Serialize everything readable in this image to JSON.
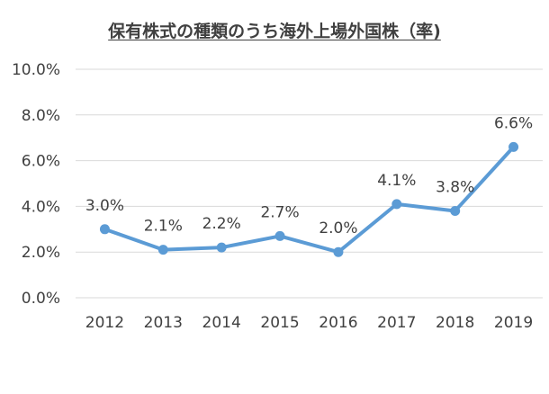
{
  "chart_data": {
    "type": "line",
    "title": "保有株式の種類のうち海外上場外国株（率)",
    "xlabel": "",
    "ylabel": "",
    "categories": [
      "2012",
      "2013",
      "2014",
      "2015",
      "2016",
      "2017",
      "2018",
      "2019"
    ],
    "series": [
      {
        "values": [
          3.0,
          2.1,
          2.2,
          2.7,
          2.0,
          4.1,
          3.8,
          6.6
        ],
        "data_labels": [
          "3.0%",
          "2.1%",
          "2.2%",
          "2.7%",
          "2.0%",
          "4.1%",
          "3.8%",
          "6.6%"
        ],
        "color": "#5B9BD5"
      }
    ],
    "ylim": [
      0,
      10
    ],
    "yticks": [
      0,
      2,
      4,
      6,
      8,
      10
    ],
    "ytick_labels": [
      "0.0%",
      "2.0%",
      "4.0%",
      "6.0%",
      "8.0%",
      "10.0%"
    ],
    "grid": true,
    "legend": "none",
    "colors": {
      "line": "#5B9BD5",
      "grid": "#D9D9D9",
      "text": "#404040"
    }
  }
}
